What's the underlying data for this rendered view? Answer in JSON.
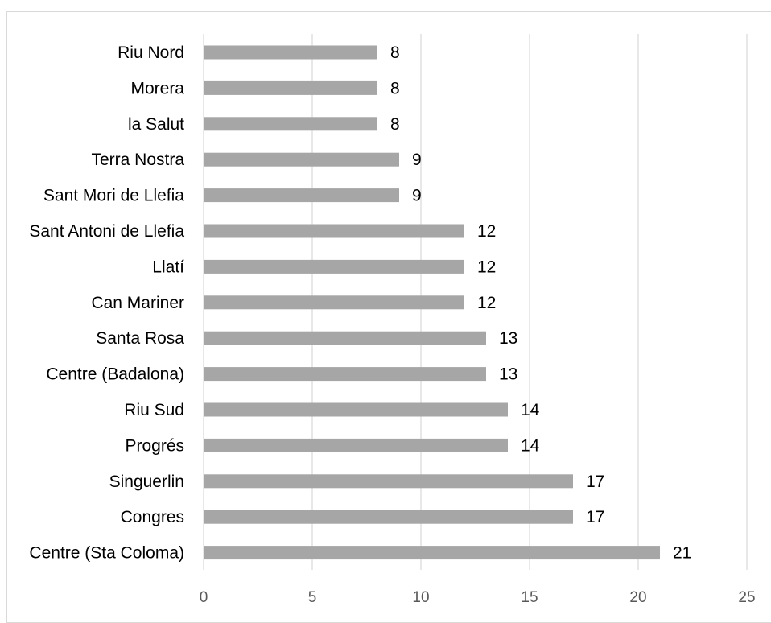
{
  "chart_data": {
    "type": "bar",
    "orientation": "horizontal",
    "categories": [
      "Riu Nord",
      "Morera",
      "la Salut",
      "Terra Nostra",
      "Sant Mori de Llefia",
      "Sant Antoni de Llefia",
      "Llatí",
      "Can Mariner",
      "Santa Rosa",
      "Centre (Badalona)",
      "Riu Sud",
      "Progrés",
      "Singuerlin",
      "Congres",
      "Centre (Sta Coloma)"
    ],
    "values": [
      8,
      8,
      8,
      9,
      9,
      12,
      12,
      12,
      13,
      13,
      14,
      14,
      17,
      17,
      21
    ],
    "xlim": [
      0,
      25
    ],
    "xticks": [
      "0",
      "5",
      "10",
      "15",
      "20",
      "25"
    ],
    "grid": true,
    "bar_color": "#a6a6a6",
    "grid_color": "#d9d9d9",
    "data_labels": true,
    "legend": "none"
  }
}
